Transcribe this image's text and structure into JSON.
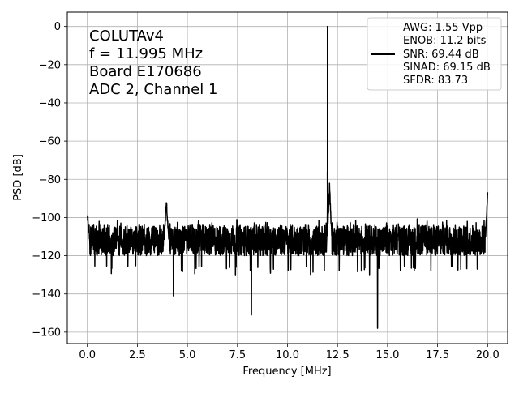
{
  "chart_data": {
    "type": "line",
    "title": "",
    "xlabel": "Frequency [MHz]",
    "ylabel": "PSD [dB]",
    "xlim": [
      -1,
      21
    ],
    "ylim": [
      -166,
      7.5
    ],
    "xticks": [
      0.0,
      2.5,
      5.0,
      7.5,
      10.0,
      12.5,
      15.0,
      17.5,
      20.0
    ],
    "xtick_labels": [
      "0.0",
      "2.5",
      "5.0",
      "7.5",
      "10.0",
      "12.5",
      "15.0",
      "17.5",
      "20.0"
    ],
    "yticks": [
      0,
      -20,
      -40,
      -60,
      -80,
      -100,
      -120,
      -140,
      -160
    ],
    "ytick_labels": [
      "0",
      "−20",
      "−40",
      "−60",
      "−80",
      "−100",
      "−120",
      "−140",
      "−160"
    ],
    "grid": true,
    "annotation_lines": [
      "COLUTAv4",
      "f = 11.995 MHz",
      "Board E170686",
      "ADC 2, Channel 1"
    ],
    "legend": {
      "placement": "top-right",
      "entries": [
        "AWG: 1.55 Vpp",
        "ENOB: 11.2 bits",
        "SNR: 69.44 dB",
        "SINAD: 69.15 dB",
        "SFDR: 83.73"
      ],
      "line_entry_index": 2
    },
    "series": [
      {
        "color": "#000000",
        "noise_floor_db": -112,
        "noise_band_db": [
          -125,
          -102
        ],
        "peaks": [
          {
            "x": 0.0,
            "y": -98
          },
          {
            "x": 3.95,
            "y": -92
          },
          {
            "x": 11.995,
            "y": 0
          },
          {
            "x": 12.1,
            "y": -84
          },
          {
            "x": 20.0,
            "y": -88
          }
        ],
        "dips": [
          {
            "x": 4.3,
            "y": -141
          },
          {
            "x": 8.2,
            "y": -151
          },
          {
            "x": 14.5,
            "y": -158
          }
        ]
      }
    ]
  }
}
